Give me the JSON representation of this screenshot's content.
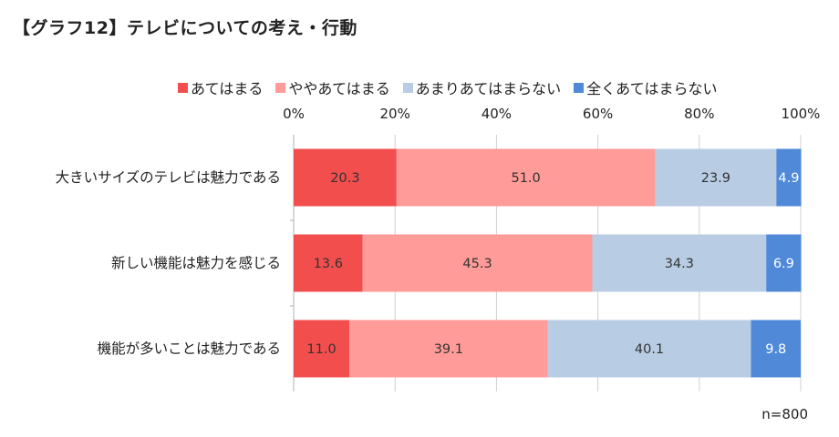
{
  "chart_data": {
    "type": "bar",
    "orientation": "horizontal",
    "stacked": true,
    "title": "【グラフ12】テレビについての考え・行動",
    "categories": [
      "大きいサイズのテレビは魅力である",
      "新しい機能は魅力を感じる",
      "機能が多いことは魅力である"
    ],
    "series": [
      {
        "name": "あてはまる",
        "color": "#f24e4e",
        "label_color": "#333333",
        "values": [
          20.3,
          13.6,
          11.0
        ]
      },
      {
        "name": "ややあてはまる",
        "color": "#ff9b98",
        "label_color": "#333333",
        "values": [
          51.0,
          45.3,
          39.1
        ]
      },
      {
        "name": "あまりあてはまらない",
        "color": "#b8cce4",
        "label_color": "#333333",
        "values": [
          23.9,
          34.3,
          40.1
        ]
      },
      {
        "name": "全くあてはまらない",
        "color": "#4f89d8",
        "label_color": "#ffffff",
        "values": [
          4.9,
          6.9,
          9.8
        ]
      }
    ],
    "x_ticks": [
      "0%",
      "20%",
      "40%",
      "60%",
      "80%",
      "100%"
    ],
    "xlim": [
      0,
      100
    ],
    "legend_position": "top",
    "grid": true
  },
  "note": "n=800"
}
